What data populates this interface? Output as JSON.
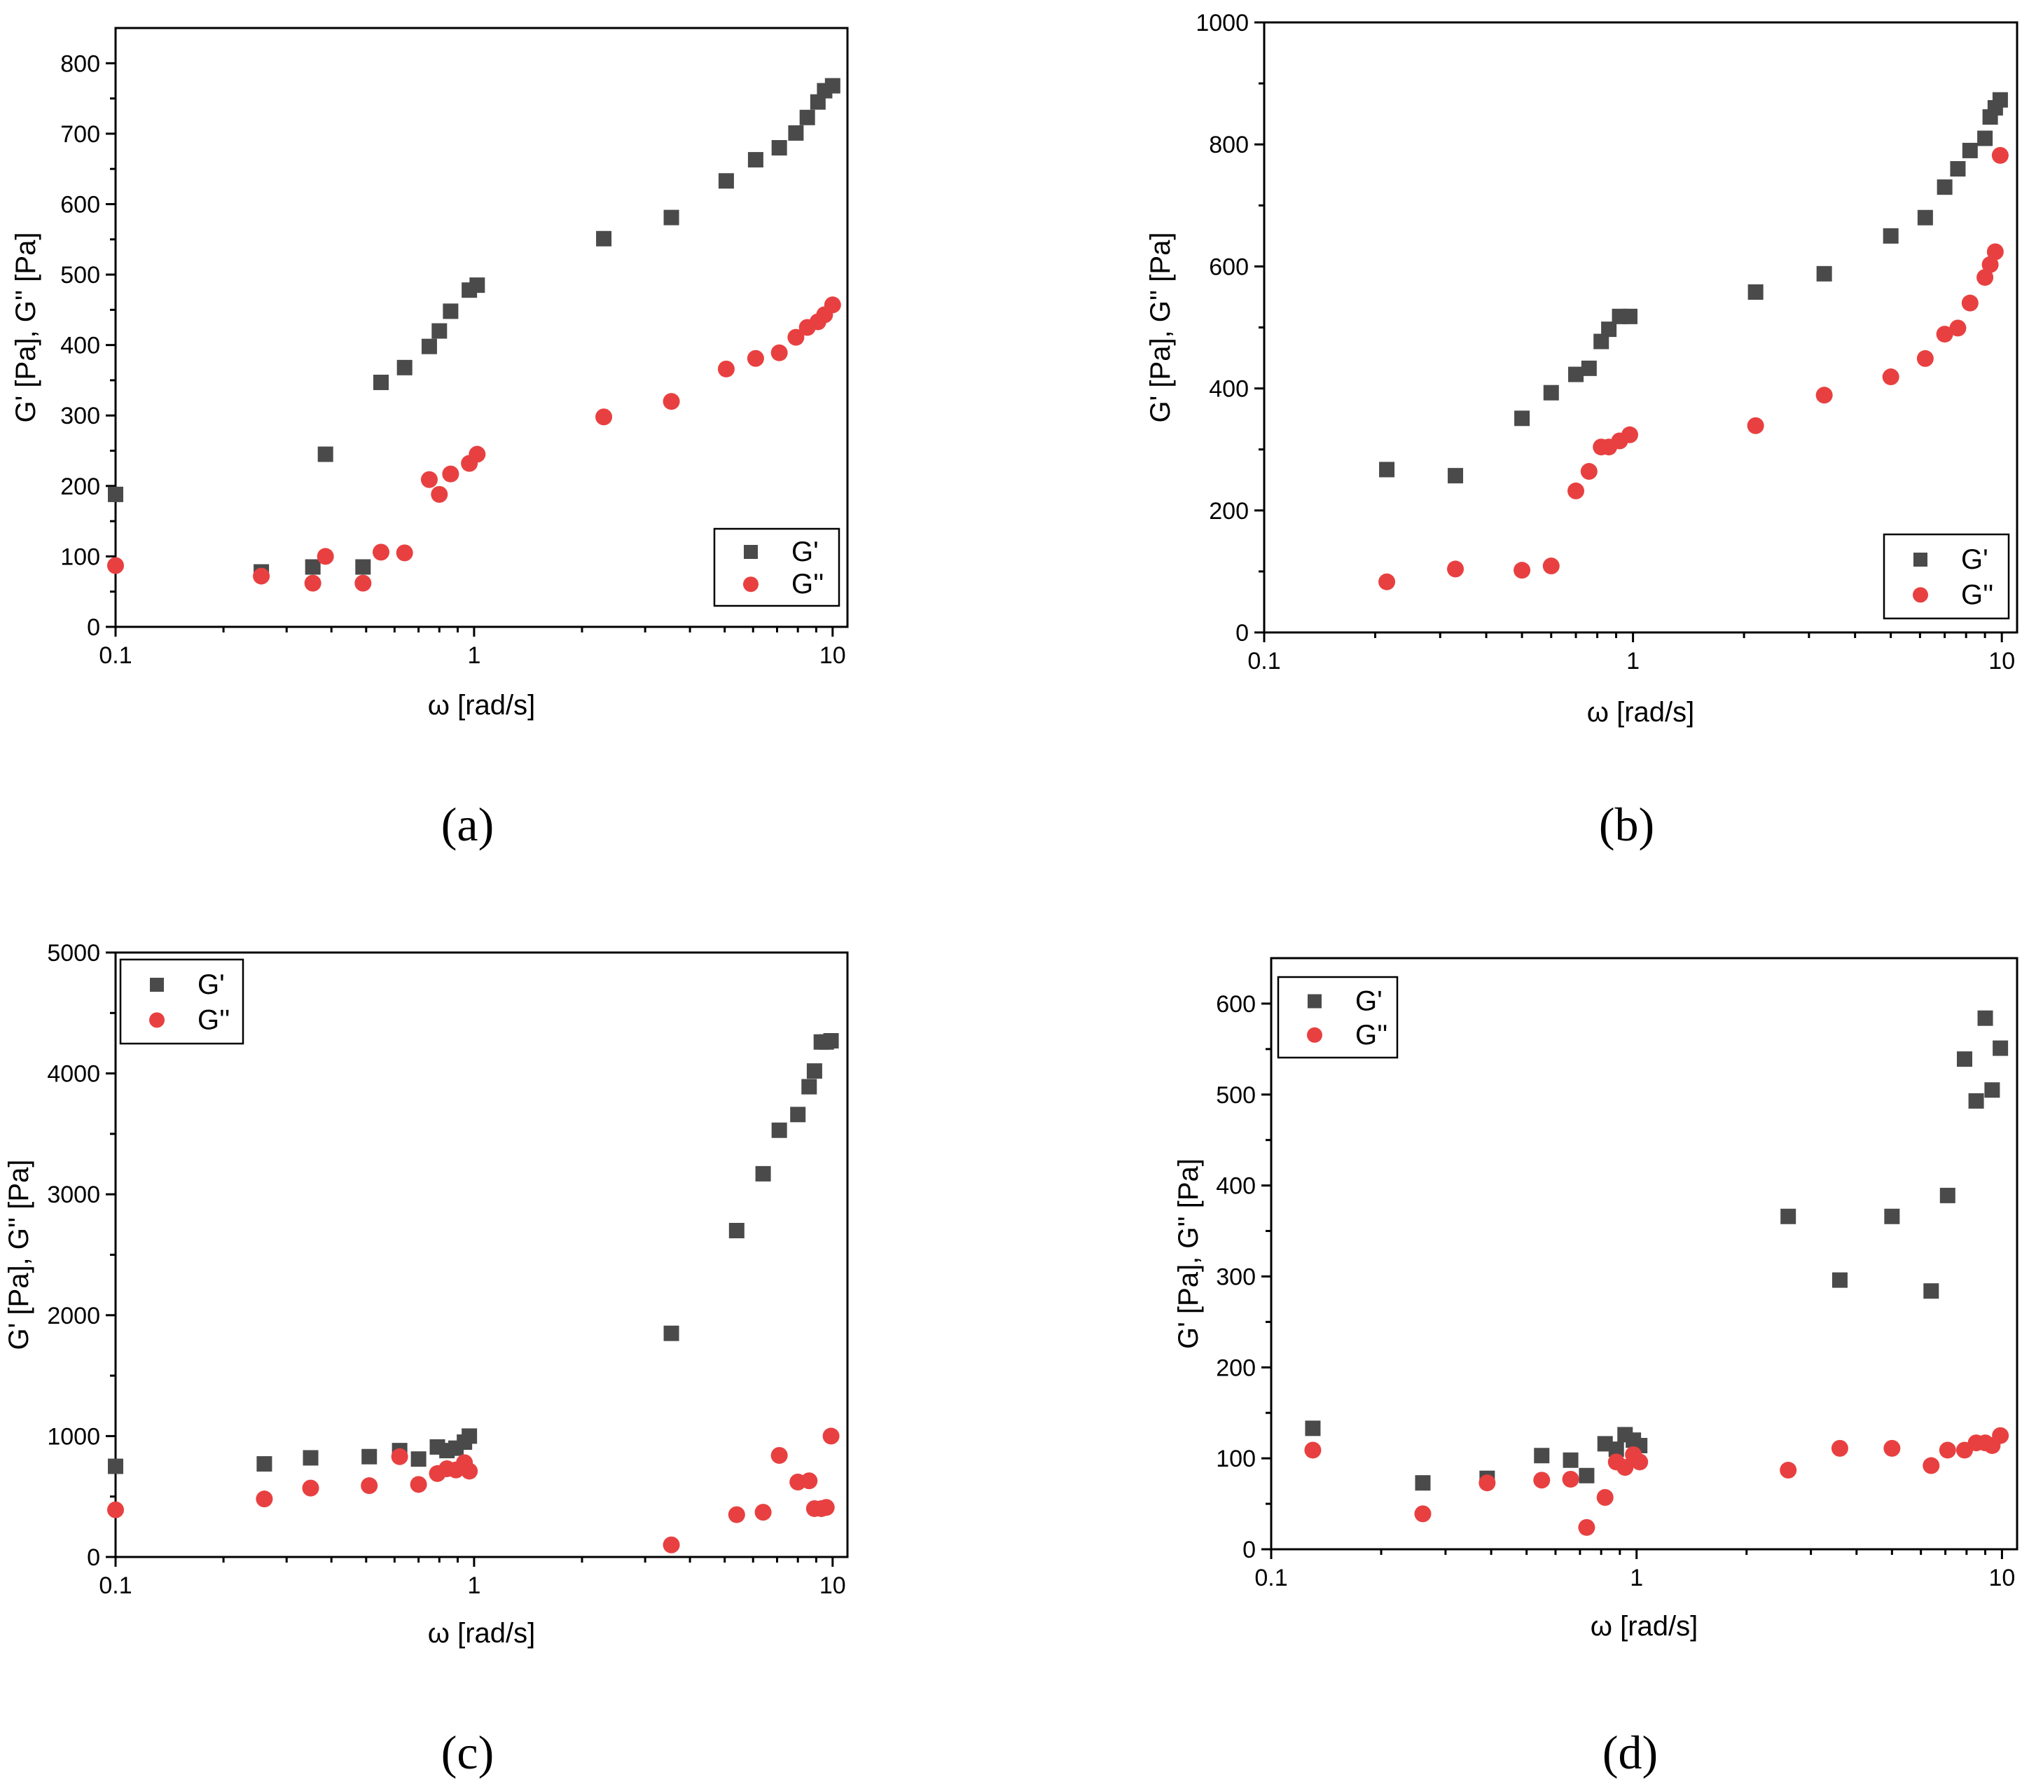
{
  "chart_data": [
    {
      "id": "a",
      "panel_label": "(a)",
      "type": "scatter",
      "xscale": "log",
      "xlim": [
        0.1,
        11
      ],
      "ylim": [
        0,
        850
      ],
      "yticks": [
        0,
        100,
        200,
        300,
        400,
        500,
        600,
        700,
        800
      ],
      "xticks": [
        0.1,
        1,
        10
      ],
      "xtick_labels": [
        "0.1",
        "1",
        "10"
      ],
      "xlabel": "ω [rad/s]",
      "ylabel": "G' [Pa], G'' [Pa]",
      "legend_position": "bottom-right",
      "series": [
        {
          "name": "G'",
          "marker": "square",
          "color": "#4a4a4a",
          "x": [
            0.1,
            0.255,
            0.355,
            0.385,
            0.49,
            0.55,
            0.64,
            0.75,
            0.8,
            0.86,
            0.97,
            1.02,
            2.3,
            3.55,
            5.05,
            6.1,
            7.1,
            7.9,
            8.5,
            9.1,
            9.5,
            10.0
          ],
          "y": [
            188,
            78,
            85,
            245,
            85,
            347,
            368,
            398,
            420,
            448,
            478,
            485,
            551,
            581,
            633,
            663,
            680,
            701,
            723,
            745,
            761,
            768
          ]
        },
        {
          "name": "G''",
          "marker": "circle",
          "color": "#e84040",
          "x": [
            0.1,
            0.255,
            0.355,
            0.385,
            0.49,
            0.55,
            0.64,
            0.75,
            0.8,
            0.86,
            0.97,
            1.02,
            2.3,
            3.55,
            5.05,
            6.1,
            7.1,
            7.9,
            8.5,
            9.1,
            9.5,
            10.0
          ],
          "y": [
            87,
            72,
            62,
            100,
            62,
            106,
            105,
            209,
            188,
            217,
            232,
            245,
            298,
            320,
            366,
            381,
            389,
            411,
            425,
            433,
            443,
            457
          ]
        }
      ]
    },
    {
      "id": "b",
      "panel_label": "(b)",
      "type": "scatter",
      "xscale": "log",
      "xlim": [
        0.1,
        11
      ],
      "ylim": [
        0,
        1000
      ],
      "yticks": [
        0,
        200,
        400,
        600,
        800,
        1000
      ],
      "xticks": [
        0.1,
        1,
        10
      ],
      "xtick_labels": [
        "0.1",
        "1",
        "10"
      ],
      "xlabel": "ω [rad/s]",
      "ylabel": "G' [Pa], G'' [Pa]",
      "legend_position": "bottom-right",
      "series": [
        {
          "name": "G'",
          "marker": "square",
          "color": "#4a4a4a",
          "x": [
            0.215,
            0.33,
            0.5,
            0.6,
            0.7,
            0.76,
            0.82,
            0.86,
            0.92,
            0.98,
            2.15,
            3.3,
            5.0,
            6.2,
            7.0,
            7.6,
            8.2,
            9.0,
            9.3,
            9.6,
            9.9
          ],
          "y": [
            267,
            257,
            351,
            393,
            423,
            433,
            477,
            497,
            518,
            518,
            558,
            588,
            650,
            680,
            730,
            760,
            790,
            810,
            845,
            860,
            873
          ]
        },
        {
          "name": "G''",
          "marker": "circle",
          "color": "#e84040",
          "x": [
            0.215,
            0.33,
            0.5,
            0.6,
            0.7,
            0.76,
            0.82,
            0.86,
            0.92,
            0.98,
            2.15,
            3.3,
            5.0,
            6.2,
            7.0,
            7.6,
            8.2,
            9.0,
            9.3,
            9.6,
            9.9
          ],
          "y": [
            83,
            104,
            102,
            109,
            232,
            264,
            304,
            304,
            314,
            324,
            339,
            389,
            419,
            449,
            489,
            499,
            540,
            582,
            603,
            624,
            782
          ]
        }
      ]
    },
    {
      "id": "c",
      "panel_label": "(c)",
      "type": "scatter",
      "xscale": "log",
      "xlim": [
        0.1,
        11
      ],
      "ylim": [
        0,
        5000
      ],
      "yticks": [
        0,
        1000,
        2000,
        3000,
        4000,
        5000
      ],
      "xticks": [
        0.1,
        1,
        10
      ],
      "xtick_labels": [
        "0.1",
        "1",
        "10"
      ],
      "xlabel": "ω [rad/s]",
      "ylabel": "G' [Pa], G'' [Pa]",
      "legend_position": "top-left",
      "series": [
        {
          "name": "G'",
          "marker": "square",
          "color": "#4a4a4a",
          "x": [
            0.1,
            0.26,
            0.35,
            0.51,
            0.62,
            0.7,
            0.79,
            0.84,
            0.89,
            0.94,
            0.97,
            3.55,
            5.4,
            6.4,
            7.1,
            8.0,
            8.6,
            8.9,
            9.3,
            9.6,
            9.9
          ],
          "y": [
            750,
            770,
            820,
            830,
            880,
            810,
            910,
            880,
            900,
            950,
            1000,
            1850,
            2700,
            3170,
            3530,
            3660,
            3890,
            4020,
            4260,
            4260,
            4270
          ]
        },
        {
          "name": "G''",
          "marker": "circle",
          "color": "#e84040",
          "x": [
            0.1,
            0.26,
            0.35,
            0.51,
            0.62,
            0.7,
            0.79,
            0.84,
            0.89,
            0.94,
            0.97,
            3.55,
            5.4,
            6.4,
            7.1,
            8.0,
            8.6,
            8.9,
            9.3,
            9.6,
            9.9
          ],
          "y": [
            390,
            480,
            570,
            590,
            830,
            600,
            690,
            730,
            720,
            780,
            710,
            100,
            350,
            370,
            840,
            620,
            630,
            400,
            400,
            410,
            1000
          ]
        }
      ]
    },
    {
      "id": "d",
      "panel_label": "(d)",
      "type": "scatter",
      "xscale": "log",
      "xlim": [
        0.1,
        11
      ],
      "ylim": [
        0,
        650
      ],
      "yticks": [
        0,
        100,
        200,
        300,
        400,
        500,
        600
      ],
      "xticks": [
        0.1,
        1,
        10
      ],
      "xtick_labels": [
        "0.1",
        "1",
        "10"
      ],
      "xlabel": "ω [rad/s]",
      "ylabel": "G' [Pa], G'' [Pa]",
      "legend_position": "top-left",
      "series": [
        {
          "name": "G'",
          "marker": "square",
          "color": "#4a4a4a",
          "x": [
            0.13,
            0.26,
            0.39,
            0.55,
            0.66,
            0.73,
            0.82,
            0.88,
            0.93,
            0.98,
            1.02,
            2.6,
            3.6,
            5.0,
            6.4,
            7.1,
            7.9,
            8.5,
            9.0,
            9.4,
            9.9
          ],
          "y": [
            133,
            73,
            78,
            103,
            98,
            81,
            116,
            110,
            126,
            120,
            114,
            366,
            296,
            366,
            284,
            389,
            539,
            493,
            584,
            505,
            551
          ]
        },
        {
          "name": "G''",
          "marker": "circle",
          "color": "#e84040",
          "x": [
            0.13,
            0.26,
            0.39,
            0.55,
            0.66,
            0.73,
            0.82,
            0.88,
            0.93,
            0.98,
            1.02,
            2.6,
            3.6,
            5.0,
            6.4,
            7.1,
            7.9,
            8.5,
            9.0,
            9.4,
            9.9
          ],
          "y": [
            109,
            39,
            73,
            76,
            77,
            24,
            57,
            96,
            90,
            104,
            96,
            87,
            111,
            111,
            92,
            109,
            109,
            117,
            117,
            114,
            125
          ]
        }
      ]
    }
  ]
}
